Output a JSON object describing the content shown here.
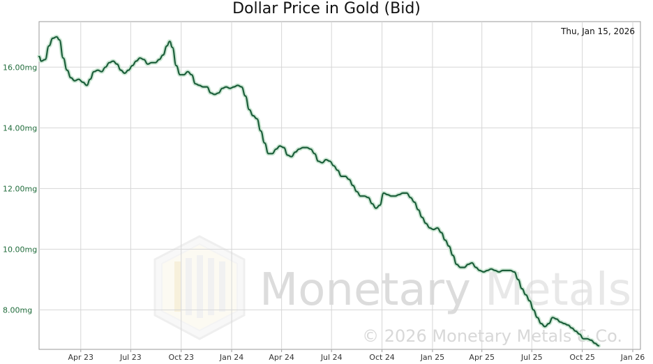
{
  "chart_data": {
    "type": "line",
    "title": "Dollar Price in Gold (Bid)",
    "date_label": "Thu, Jan 15, 2026",
    "ylim": [
      6.7,
      17.5
    ],
    "yticks": [
      {
        "value": 8,
        "label": "8.00mg"
      },
      {
        "value": 10,
        "label": "10.00mg"
      },
      {
        "value": 12,
        "label": "12.00mg"
      },
      {
        "value": 14,
        "label": "14.00mg"
      },
      {
        "value": 16,
        "label": "16.00mg"
      }
    ],
    "xlim": [
      "2023-01-15",
      "2026-01-15"
    ],
    "xticks": [
      {
        "date": "2023-04-01",
        "label": "Apr 23"
      },
      {
        "date": "2023-07-01",
        "label": "Jul 23"
      },
      {
        "date": "2023-10-01",
        "label": "Oct 23"
      },
      {
        "date": "2024-01-01",
        "label": "Jan 24"
      },
      {
        "date": "2024-04-01",
        "label": "Apr 24"
      },
      {
        "date": "2024-07-01",
        "label": "Jul 24"
      },
      {
        "date": "2024-10-01",
        "label": "Oct 24"
      },
      {
        "date": "2025-01-01",
        "label": "Jan 25"
      },
      {
        "date": "2025-04-01",
        "label": "Apr 25"
      },
      {
        "date": "2025-07-01",
        "label": "Jul 25"
      },
      {
        "date": "2025-10-01",
        "label": "Oct 25"
      },
      {
        "date": "2026-01-01",
        "label": "Jan 26"
      }
    ],
    "series": [
      {
        "color": "#1b5e3a",
        "points": [
          [
            "2023-01-15",
            16.35
          ],
          [
            "2023-01-19",
            16.2
          ],
          [
            "2023-01-26",
            16.25
          ],
          [
            "2023-02-02",
            16.7
          ],
          [
            "2023-02-09",
            16.95
          ],
          [
            "2023-02-16",
            17.0
          ],
          [
            "2023-02-21",
            16.9
          ],
          [
            "2023-02-28",
            16.3
          ],
          [
            "2023-03-07",
            15.9
          ],
          [
            "2023-03-14",
            15.65
          ],
          [
            "2023-03-21",
            15.55
          ],
          [
            "2023-03-28",
            15.6
          ],
          [
            "2023-04-05",
            15.5
          ],
          [
            "2023-04-12",
            15.4
          ],
          [
            "2023-04-18",
            15.6
          ],
          [
            "2023-04-25",
            15.85
          ],
          [
            "2023-05-02",
            15.9
          ],
          [
            "2023-05-09",
            15.85
          ],
          [
            "2023-05-16",
            16.0
          ],
          [
            "2023-05-23",
            16.15
          ],
          [
            "2023-05-30",
            16.2
          ],
          [
            "2023-06-06",
            16.1
          ],
          [
            "2023-06-13",
            15.9
          ],
          [
            "2023-06-20",
            15.8
          ],
          [
            "2023-06-27",
            15.9
          ],
          [
            "2023-07-04",
            16.05
          ],
          [
            "2023-07-11",
            16.2
          ],
          [
            "2023-07-18",
            16.3
          ],
          [
            "2023-07-25",
            16.25
          ],
          [
            "2023-08-01",
            16.1
          ],
          [
            "2023-08-08",
            16.15
          ],
          [
            "2023-08-15",
            16.15
          ],
          [
            "2023-08-22",
            16.25
          ],
          [
            "2023-08-29",
            16.4
          ],
          [
            "2023-09-05",
            16.7
          ],
          [
            "2023-09-10",
            16.85
          ],
          [
            "2023-09-15",
            16.65
          ],
          [
            "2023-09-22",
            16.05
          ],
          [
            "2023-09-29",
            15.75
          ],
          [
            "2023-10-06",
            15.75
          ],
          [
            "2023-10-13",
            15.85
          ],
          [
            "2023-10-20",
            15.75
          ],
          [
            "2023-10-27",
            15.45
          ],
          [
            "2023-11-03",
            15.4
          ],
          [
            "2023-11-10",
            15.35
          ],
          [
            "2023-11-17",
            15.35
          ],
          [
            "2023-11-24",
            15.15
          ],
          [
            "2023-12-01",
            15.1
          ],
          [
            "2023-12-08",
            15.15
          ],
          [
            "2023-12-15",
            15.3
          ],
          [
            "2023-12-22",
            15.35
          ],
          [
            "2023-12-29",
            15.3
          ],
          [
            "2024-01-05",
            15.35
          ],
          [
            "2024-01-12",
            15.4
          ],
          [
            "2024-01-19",
            15.35
          ],
          [
            "2024-01-26",
            15.05
          ],
          [
            "2024-02-02",
            14.6
          ],
          [
            "2024-02-09",
            14.4
          ],
          [
            "2024-02-16",
            14.3
          ],
          [
            "2024-02-23",
            13.9
          ],
          [
            "2024-03-01",
            13.5
          ],
          [
            "2024-03-08",
            13.15
          ],
          [
            "2024-03-15",
            13.15
          ],
          [
            "2024-03-22",
            13.3
          ],
          [
            "2024-03-29",
            13.4
          ],
          [
            "2024-04-05",
            13.35
          ],
          [
            "2024-04-12",
            13.1
          ],
          [
            "2024-04-19",
            13.05
          ],
          [
            "2024-04-26",
            13.2
          ],
          [
            "2024-05-03",
            13.3
          ],
          [
            "2024-05-10",
            13.35
          ],
          [
            "2024-05-17",
            13.35
          ],
          [
            "2024-05-24",
            13.3
          ],
          [
            "2024-05-31",
            13.15
          ],
          [
            "2024-06-07",
            12.9
          ],
          [
            "2024-06-14",
            12.85
          ],
          [
            "2024-06-21",
            12.95
          ],
          [
            "2024-06-28",
            12.9
          ],
          [
            "2024-07-05",
            12.75
          ],
          [
            "2024-07-12",
            12.6
          ],
          [
            "2024-07-19",
            12.4
          ],
          [
            "2024-07-26",
            12.4
          ],
          [
            "2024-08-02",
            12.3
          ],
          [
            "2024-08-09",
            12.1
          ],
          [
            "2024-08-16",
            11.9
          ],
          [
            "2024-08-23",
            11.75
          ],
          [
            "2024-08-30",
            11.75
          ],
          [
            "2024-09-06",
            11.7
          ],
          [
            "2024-09-13",
            11.5
          ],
          [
            "2024-09-20",
            11.35
          ],
          [
            "2024-09-27",
            11.45
          ],
          [
            "2024-10-04",
            11.85
          ],
          [
            "2024-10-11",
            11.8
          ],
          [
            "2024-10-18",
            11.75
          ],
          [
            "2024-10-25",
            11.75
          ],
          [
            "2024-11-01",
            11.8
          ],
          [
            "2024-11-08",
            11.85
          ],
          [
            "2024-11-15",
            11.85
          ],
          [
            "2024-11-22",
            11.7
          ],
          [
            "2024-11-29",
            11.55
          ],
          [
            "2024-12-06",
            11.3
          ],
          [
            "2024-12-13",
            11.05
          ],
          [
            "2024-12-20",
            10.85
          ],
          [
            "2024-12-27",
            10.7
          ],
          [
            "2025-01-03",
            10.65
          ],
          [
            "2025-01-10",
            10.7
          ],
          [
            "2025-01-17",
            10.55
          ],
          [
            "2025-01-24",
            10.3
          ],
          [
            "2025-01-31",
            10.1
          ],
          [
            "2025-02-07",
            9.8
          ],
          [
            "2025-02-14",
            9.5
          ],
          [
            "2025-02-21",
            9.4
          ],
          [
            "2025-02-28",
            9.4
          ],
          [
            "2025-03-07",
            9.5
          ],
          [
            "2025-03-14",
            9.55
          ],
          [
            "2025-03-21",
            9.4
          ],
          [
            "2025-03-28",
            9.3
          ],
          [
            "2025-04-04",
            9.25
          ],
          [
            "2025-04-11",
            9.3
          ],
          [
            "2025-04-18",
            9.35
          ],
          [
            "2025-04-25",
            9.3
          ],
          [
            "2025-05-02",
            9.25
          ],
          [
            "2025-05-09",
            9.3
          ],
          [
            "2025-05-16",
            9.3
          ],
          [
            "2025-05-23",
            9.3
          ],
          [
            "2025-05-30",
            9.25
          ],
          [
            "2025-06-06",
            9.0
          ],
          [
            "2025-06-13",
            8.7
          ],
          [
            "2025-06-20",
            8.5
          ],
          [
            "2025-06-27",
            8.3
          ],
          [
            "2025-07-04",
            8.0
          ],
          [
            "2025-07-11",
            7.75
          ],
          [
            "2025-07-18",
            7.55
          ],
          [
            "2025-07-25",
            7.45
          ],
          [
            "2025-08-01",
            7.55
          ],
          [
            "2025-08-08",
            7.75
          ],
          [
            "2025-08-15",
            7.7
          ],
          [
            "2025-08-22",
            7.6
          ],
          [
            "2025-08-29",
            7.55
          ],
          [
            "2025-09-05",
            7.5
          ],
          [
            "2025-09-12",
            7.4
          ],
          [
            "2025-09-19",
            7.3
          ],
          [
            "2025-09-26",
            7.2
          ],
          [
            "2025-10-03",
            7.05
          ],
          [
            "2025-10-10",
            7.05
          ],
          [
            "2025-10-17",
            7.0
          ],
          [
            "2025-10-24",
            6.9
          ],
          [
            "2025-10-31",
            6.82
          ]
        ]
      }
    ],
    "grid": true,
    "watermark": {
      "logo_text": "Monetary",
      "logo_text_2": "Metals",
      "copyright": "© 2026 Monetary Metals & Co."
    }
  }
}
